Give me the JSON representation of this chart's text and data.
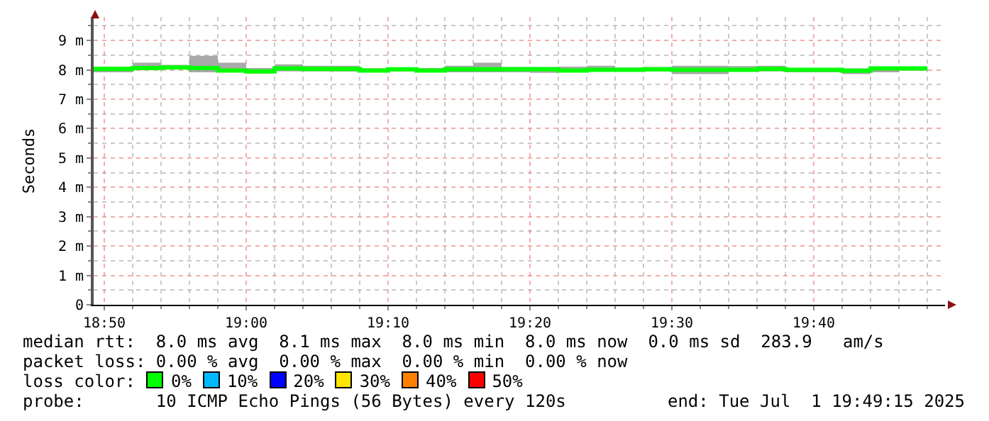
{
  "chart_data": {
    "type": "step",
    "ylabel": "Seconds",
    "grid": true,
    "marker": "none",
    "line_style": "solid",
    "xlim": [
      "2025-07-01T18:49:15",
      "2025-07-01T19:49:15"
    ],
    "xticks": [
      {
        "value": "2025-07-01T18:50",
        "label": "18:50"
      },
      {
        "value": "2025-07-01T18:52",
        "label": null
      },
      {
        "value": "2025-07-01T18:54",
        "label": null
      },
      {
        "value": "2025-07-01T18:56",
        "label": null
      },
      {
        "value": "2025-07-01T18:58",
        "label": null
      },
      {
        "value": "2025-07-01T19:00",
        "label": "19:00"
      },
      {
        "value": "2025-07-01T19:02",
        "label": null
      },
      {
        "value": "2025-07-01T19:04",
        "label": null
      },
      {
        "value": "2025-07-01T19:06",
        "label": null
      },
      {
        "value": "2025-07-01T19:08",
        "label": null
      },
      {
        "value": "2025-07-01T19:10",
        "label": "19:10"
      },
      {
        "value": "2025-07-01T19:12",
        "label": null
      },
      {
        "value": "2025-07-01T19:14",
        "label": null
      },
      {
        "value": "2025-07-01T19:16",
        "label": null
      },
      {
        "value": "2025-07-01T19:18",
        "label": null
      },
      {
        "value": "2025-07-01T19:20",
        "label": "19:20"
      },
      {
        "value": "2025-07-01T19:22",
        "label": null
      },
      {
        "value": "2025-07-01T19:24",
        "label": null
      },
      {
        "value": "2025-07-01T19:26",
        "label": null
      },
      {
        "value": "2025-07-01T19:28",
        "label": null
      },
      {
        "value": "2025-07-01T19:30",
        "label": "19:30"
      },
      {
        "value": "2025-07-01T19:32",
        "label": null
      },
      {
        "value": "2025-07-01T19:34",
        "label": null
      },
      {
        "value": "2025-07-01T19:36",
        "label": null
      },
      {
        "value": "2025-07-01T19:38",
        "label": null
      },
      {
        "value": "2025-07-01T19:40",
        "label": "19:40"
      },
      {
        "value": "2025-07-01T19:42",
        "label": null
      },
      {
        "value": "2025-07-01T19:44",
        "label": null
      },
      {
        "value": "2025-07-01T19:46",
        "label": null
      },
      {
        "value": "2025-07-01T19:48",
        "label": null
      }
    ],
    "ylim": [
      0,
      9.8
    ],
    "yticks": [
      0,
      {
        "value": 0.5,
        "label": null
      },
      {
        "value": 1,
        "label": "1 m"
      },
      {
        "value": 1.5,
        "label": null
      },
      {
        "value": 2,
        "label": "2 m"
      },
      {
        "value": 2.5,
        "label": null
      },
      {
        "value": 3,
        "label": "3 m"
      },
      {
        "value": 3.5,
        "label": null
      },
      {
        "value": 4,
        "label": "4 m"
      },
      {
        "value": 4.5,
        "label": null
      },
      {
        "value": 5,
        "label": "5 m"
      },
      {
        "value": 5.5,
        "label": null
      },
      {
        "value": 6,
        "label": "6 m"
      },
      {
        "value": 6.5,
        "label": null
      },
      {
        "value": 7,
        "label": "7 m"
      },
      {
        "value": 7.5,
        "label": null
      },
      {
        "value": 8,
        "label": "8 m"
      },
      {
        "value": 8.5,
        "label": null
      },
      {
        "value": 9,
        "label": "9 m"
      },
      {
        "value": 9.5,
        "label": null
      }
    ],
    "x": [
      "2025-07-01T18:49:15",
      "2025-07-01T18:52",
      "2025-07-01T18:54",
      "2025-07-01T18:56",
      "2025-07-01T18:58",
      "2025-07-01T19:00",
      "2025-07-01T19:02",
      "2025-07-01T19:04",
      "2025-07-01T19:06",
      "2025-07-01T19:08",
      "2025-07-01T19:10",
      "2025-07-01T19:12",
      "2025-07-01T19:14",
      "2025-07-01T19:16",
      "2025-07-01T19:18",
      "2025-07-01T19:20",
      "2025-07-01T19:22",
      "2025-07-01T19:24",
      "2025-07-01T19:26",
      "2025-07-01T19:28",
      "2025-07-01T19:30",
      "2025-07-01T19:32",
      "2025-07-01T19:34",
      "2025-07-01T19:36",
      "2025-07-01T19:38",
      "2025-07-01T19:40",
      "2025-07-01T19:42",
      "2025-07-01T19:44",
      "2025-07-01T19:46",
      "2025-07-01T19:48"
    ],
    "series": [
      {
        "color": "#00ff00",
        "values": [
          8.03,
          8.06,
          8.08,
          8.06,
          7.98,
          7.95,
          8.05,
          8.03,
          8.03,
          7.98,
          8.02,
          7.98,
          8.02,
          8.02,
          8.02,
          8.02,
          7.98,
          8.0,
          8.0,
          8.02,
          8.0,
          8.0,
          8.0,
          8.03,
          8.0,
          8.0,
          7.97,
          8.05,
          8.05,
          8.05
        ],
        "lower": [
          7.92,
          8.03,
          8.06,
          7.92,
          7.92,
          7.87,
          7.95,
          7.95,
          7.94,
          7.92,
          7.95,
          7.92,
          7.92,
          7.92,
          7.92,
          7.9,
          7.92,
          7.95,
          7.95,
          7.95,
          7.86,
          7.86,
          7.95,
          7.95,
          7.92,
          7.92,
          7.86,
          7.92,
          7.98,
          7.98
        ],
        "upper": [
          8.1,
          8.24,
          8.17,
          8.48,
          8.24,
          8.06,
          8.19,
          8.14,
          8.14,
          8.05,
          8.05,
          8.06,
          8.14,
          8.24,
          8.1,
          8.1,
          8.11,
          8.14,
          8.08,
          8.1,
          8.14,
          8.14,
          8.13,
          8.14,
          8.06,
          8.03,
          8.05,
          8.1,
          8.1,
          8.1
        ]
      }
    ],
    "annotations": [
      "median rtt:  8.0 ms avg  8.1 ms max  8.0 ms min  8.0 ms now  0.0 ms sd  283.9   am/s",
      "packet loss: 0.00 % avg  0.00 % max  0.00 % min  0.00 % now",
      "loss color:",
      "0%",
      "10%",
      "20%",
      "30%",
      "40%",
      "50%",
      "probe:       10 ICMP Echo Pings (56 Bytes) every 120s",
      "end: Tue Jul  1 19:49:15 2025"
    ]
  }
}
